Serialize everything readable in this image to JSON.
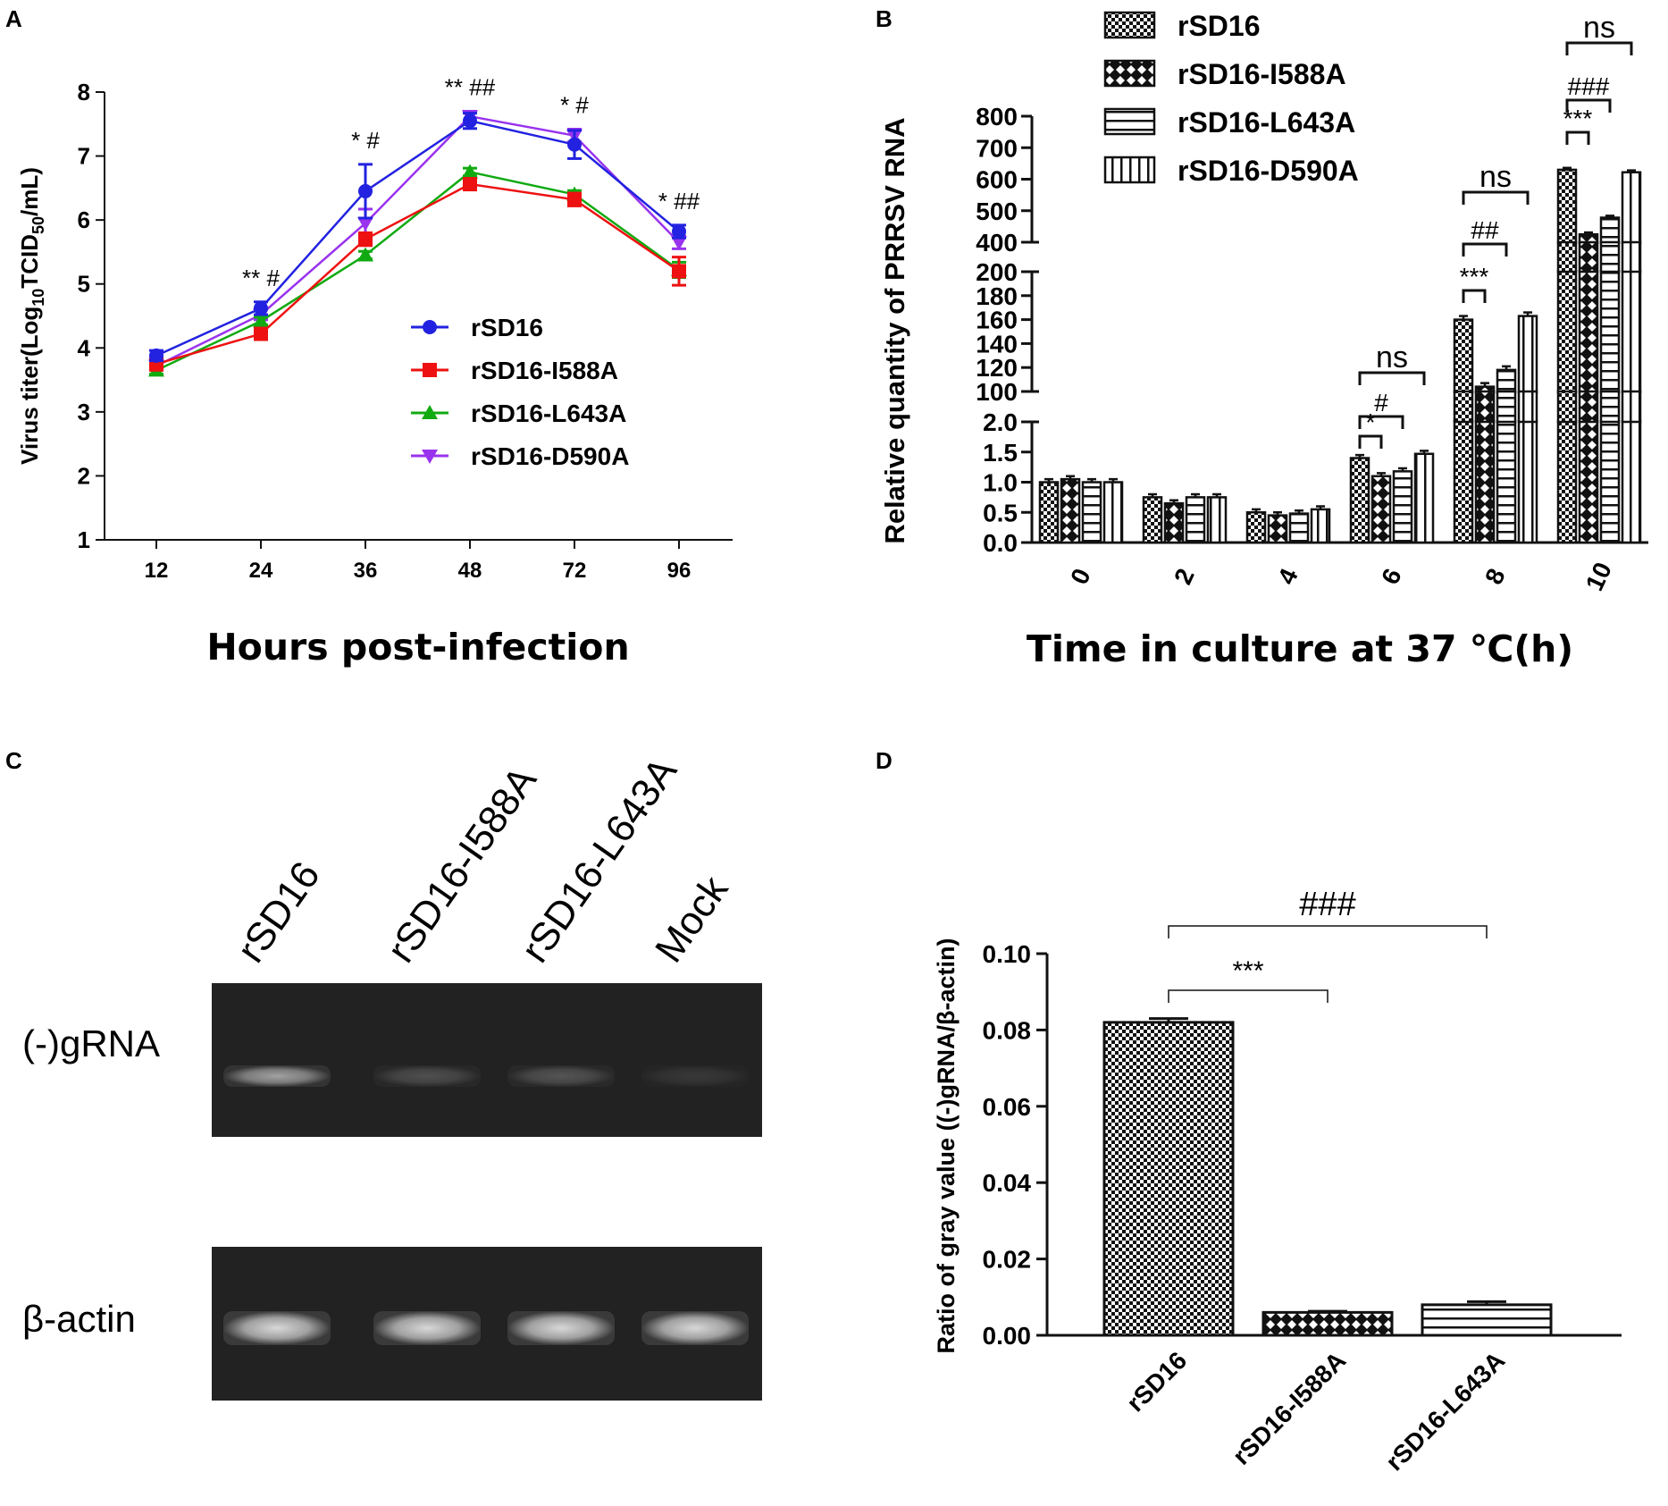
{
  "chart_data": [
    {
      "panel": "A",
      "type": "line",
      "xlabel": "Hours post-infection",
      "ylabel_parts": [
        "Virus titer(Log",
        "10",
        "TCID",
        "50",
        "/mL)"
      ],
      "categories": [
        "12",
        "24",
        "36",
        "48",
        "72",
        "96"
      ],
      "ylim": [
        1,
        8
      ],
      "yticks": [
        1,
        2,
        3,
        4,
        5,
        6,
        7,
        8
      ],
      "series": [
        {
          "name": "rSD16",
          "color": "#2222e0",
          "marker": "circle",
          "values": [
            3.88,
            4.62,
            6.45,
            7.55,
            7.18,
            5.82
          ],
          "errors": [
            0.08,
            0.1,
            0.42,
            0.12,
            0.22,
            0.1
          ]
        },
        {
          "name": "rSD16-I588A",
          "color": "#ee1111",
          "marker": "square",
          "values": [
            3.75,
            4.22,
            5.7,
            6.56,
            6.32,
            5.2
          ],
          "errors": [
            0.1,
            0.06,
            0.1,
            0.06,
            0.1,
            0.22
          ]
        },
        {
          "name": "rSD16-L643A",
          "color": "#11aa11",
          "marker": "triangle-up",
          "values": [
            3.65,
            4.42,
            5.45,
            6.75,
            6.4,
            5.22
          ],
          "errors": [
            0.06,
            0.06,
            0.06,
            0.06,
            0.06,
            0.12
          ]
        },
        {
          "name": "rSD16-D590A",
          "color": "#9933ee",
          "marker": "triangle-down",
          "values": [
            3.72,
            4.52,
            5.95,
            7.62,
            7.32,
            5.65
          ],
          "errors": [
            0.06,
            0.08,
            0.22,
            0.08,
            0.1,
            0.1
          ]
        }
      ],
      "annotations": [
        {
          "x": "24",
          "label": "** #"
        },
        {
          "x": "36",
          "label": "* #"
        },
        {
          "x": "48",
          "label": "** ##"
        },
        {
          "x": "72",
          "label": "*  #"
        },
        {
          "x": "96",
          "label": "*  ##"
        }
      ]
    },
    {
      "panel": "B",
      "type": "bar",
      "xlabel": "Time in culture at 37 ℃(h)",
      "ylabel": "Relative quantity of PRRSV RNA",
      "categories": [
        "0",
        "2",
        "4",
        "6",
        "8",
        "10"
      ],
      "y_segments": [
        {
          "range": [
            0,
            2.0
          ],
          "ticks": [
            "0.0",
            "0.5",
            "1.0",
            "1.5",
            "2.0"
          ]
        },
        {
          "range": [
            100,
            200
          ],
          "ticks": [
            "100",
            "120",
            "140",
            "160",
            "180",
            "200"
          ]
        },
        {
          "range": [
            400,
            800
          ],
          "ticks": [
            "400",
            "500",
            "600",
            "700",
            "800"
          ]
        }
      ],
      "series": [
        {
          "name": "rSD16",
          "pattern": "checker",
          "values": [
            1.0,
            0.75,
            0.5,
            1.4,
            160,
            630
          ]
        },
        {
          "name": "rSD16-I588A",
          "pattern": "diamond",
          "values": [
            1.05,
            0.65,
            0.45,
            1.1,
            104,
            425
          ]
        },
        {
          "name": "rSD16-L643A",
          "pattern": "hlines",
          "values": [
            1.0,
            0.75,
            0.48,
            1.18,
            118,
            478
          ]
        },
        {
          "name": "rSD16-D590A",
          "pattern": "vlines",
          "values": [
            1.0,
            0.75,
            0.55,
            1.47,
            163,
            622
          ]
        }
      ],
      "significance": [
        {
          "time": "6",
          "labels": [
            "*",
            "#",
            "ns"
          ]
        },
        {
          "time": "8",
          "labels": [
            "***",
            "##",
            "ns"
          ]
        },
        {
          "time": "10",
          "labels": [
            "***",
            "###",
            "ns"
          ]
        }
      ]
    },
    {
      "panel": "C",
      "type": "gel",
      "lanes": [
        "rSD16",
        "rSD16-I588A",
        "rSD16-L643A",
        "Mock"
      ],
      "rows": [
        {
          "label": "(-)gRNA",
          "band_intensity": [
            0.7,
            0.25,
            0.28,
            0.12
          ]
        },
        {
          "label": "β-actin",
          "band_intensity": [
            1.0,
            1.0,
            1.0,
            1.0
          ]
        }
      ]
    },
    {
      "panel": "D",
      "type": "bar",
      "ylabel": "Ratio of gray value ((-)gRNA/β-actin)",
      "categories": [
        "rSD16",
        "rSD16-I588A",
        "rSD16-L643A"
      ],
      "values": [
        0.082,
        0.006,
        0.008
      ],
      "errors": [
        0.001,
        0.0003,
        0.0008
      ],
      "patterns": [
        "checker",
        "diamond",
        "hlines"
      ],
      "ylim": [
        0,
        0.1
      ],
      "yticks": [
        "0.00",
        "0.02",
        "0.04",
        "0.06",
        "0.08",
        "0.10"
      ],
      "significance": [
        {
          "from": "rSD16",
          "to": "rSD16-I588A",
          "label": "***"
        },
        {
          "from": "rSD16",
          "to": "rSD16-L643A",
          "label": "###"
        }
      ]
    }
  ],
  "panel_labels": [
    "A",
    "B",
    "C",
    "D"
  ]
}
